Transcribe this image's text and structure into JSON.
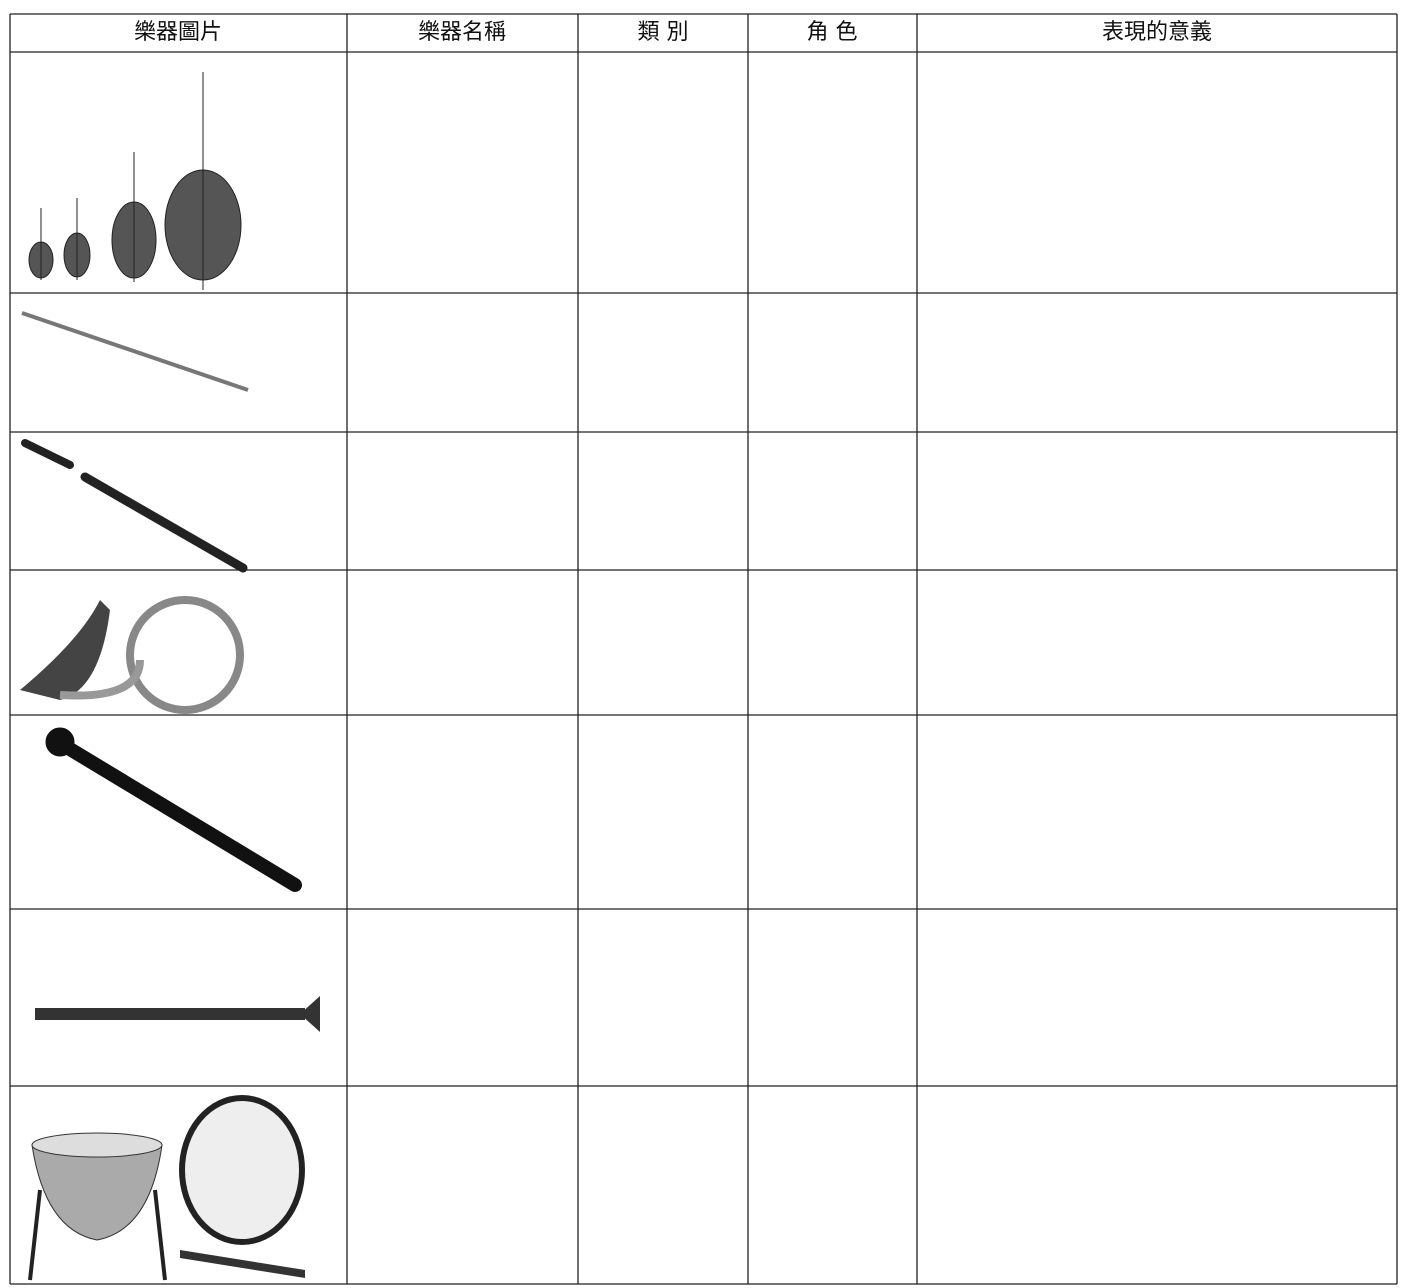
{
  "table": {
    "header": [
      "樂器圖片",
      "樂器名稱",
      "類 別",
      "角 色",
      "表現的意義"
    ]
  }
}
